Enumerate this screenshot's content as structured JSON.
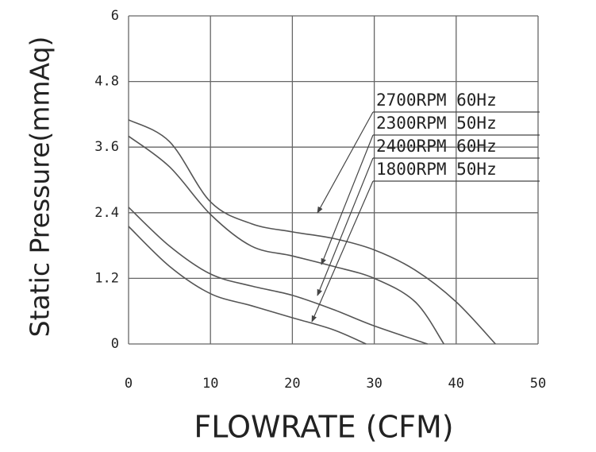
{
  "chart_data": {
    "type": "line",
    "x_label": "FLOWRATE (CFM)",
    "y_label": "Static Pressure(mmAq)",
    "xlim": [
      0,
      50
    ],
    "xticks": [
      0,
      10,
      20,
      30,
      40,
      50
    ],
    "ylim": [
      0,
      6
    ],
    "yticks": [
      0,
      1.2,
      2.4,
      3.6,
      4.8,
      6
    ],
    "grid": true,
    "series": [
      {
        "name": "2700RPM 60Hz",
        "color": "#555555",
        "x": [
          0,
          5,
          10,
          15,
          20,
          25,
          30,
          35,
          40,
          44.8
        ],
        "values": [
          4.1,
          3.7,
          2.6,
          2.2,
          2.05,
          1.93,
          1.72,
          1.35,
          0.77,
          0
        ]
      },
      {
        "name": "2300RPM 50Hz",
        "color": "#555555",
        "x": [
          0,
          5,
          10,
          15,
          20,
          25,
          30,
          35,
          38.5
        ],
        "values": [
          3.8,
          3.24,
          2.37,
          1.79,
          1.61,
          1.42,
          1.2,
          0.77,
          0
        ]
      },
      {
        "name": "2400RPM 60Hz",
        "color": "#555555",
        "x": [
          0,
          5,
          10,
          15,
          20,
          25,
          30,
          36.5
        ],
        "values": [
          2.5,
          1.79,
          1.28,
          1.06,
          0.89,
          0.63,
          0.33,
          0
        ]
      },
      {
        "name": "1800RPM 50Hz",
        "color": "#555555",
        "x": [
          0,
          5,
          10,
          15,
          20,
          25,
          29
        ],
        "values": [
          2.15,
          1.42,
          0.92,
          0.7,
          0.48,
          0.26,
          0
        ]
      }
    ]
  }
}
